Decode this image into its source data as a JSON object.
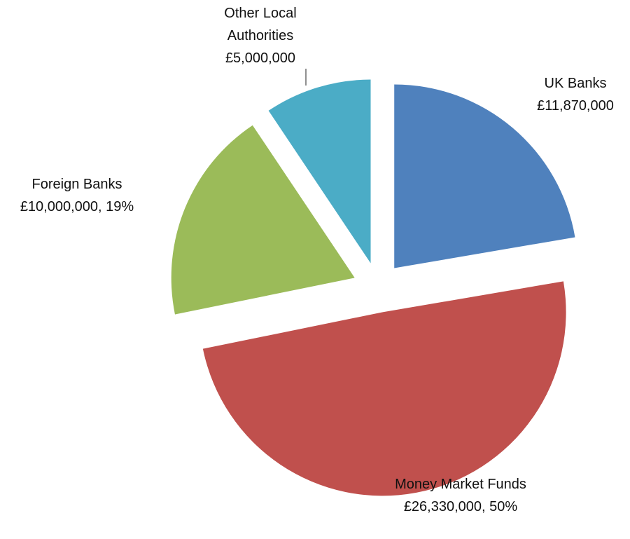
{
  "chart_data": {
    "type": "pie",
    "categories": [
      "UK Banks",
      "Money Market Funds",
      "Foreign Banks",
      "Other Local Authorities"
    ],
    "values": [
      11870000,
      26330000,
      10000000,
      5000000
    ],
    "value_labels": [
      "£11,870,000",
      "£26,330,000, 50%",
      "£10,000,000, 19%",
      "£5,000,000"
    ],
    "colors": [
      "#4f81bd",
      "#c0504d",
      "#9bbb59",
      "#4bacc6"
    ]
  }
}
